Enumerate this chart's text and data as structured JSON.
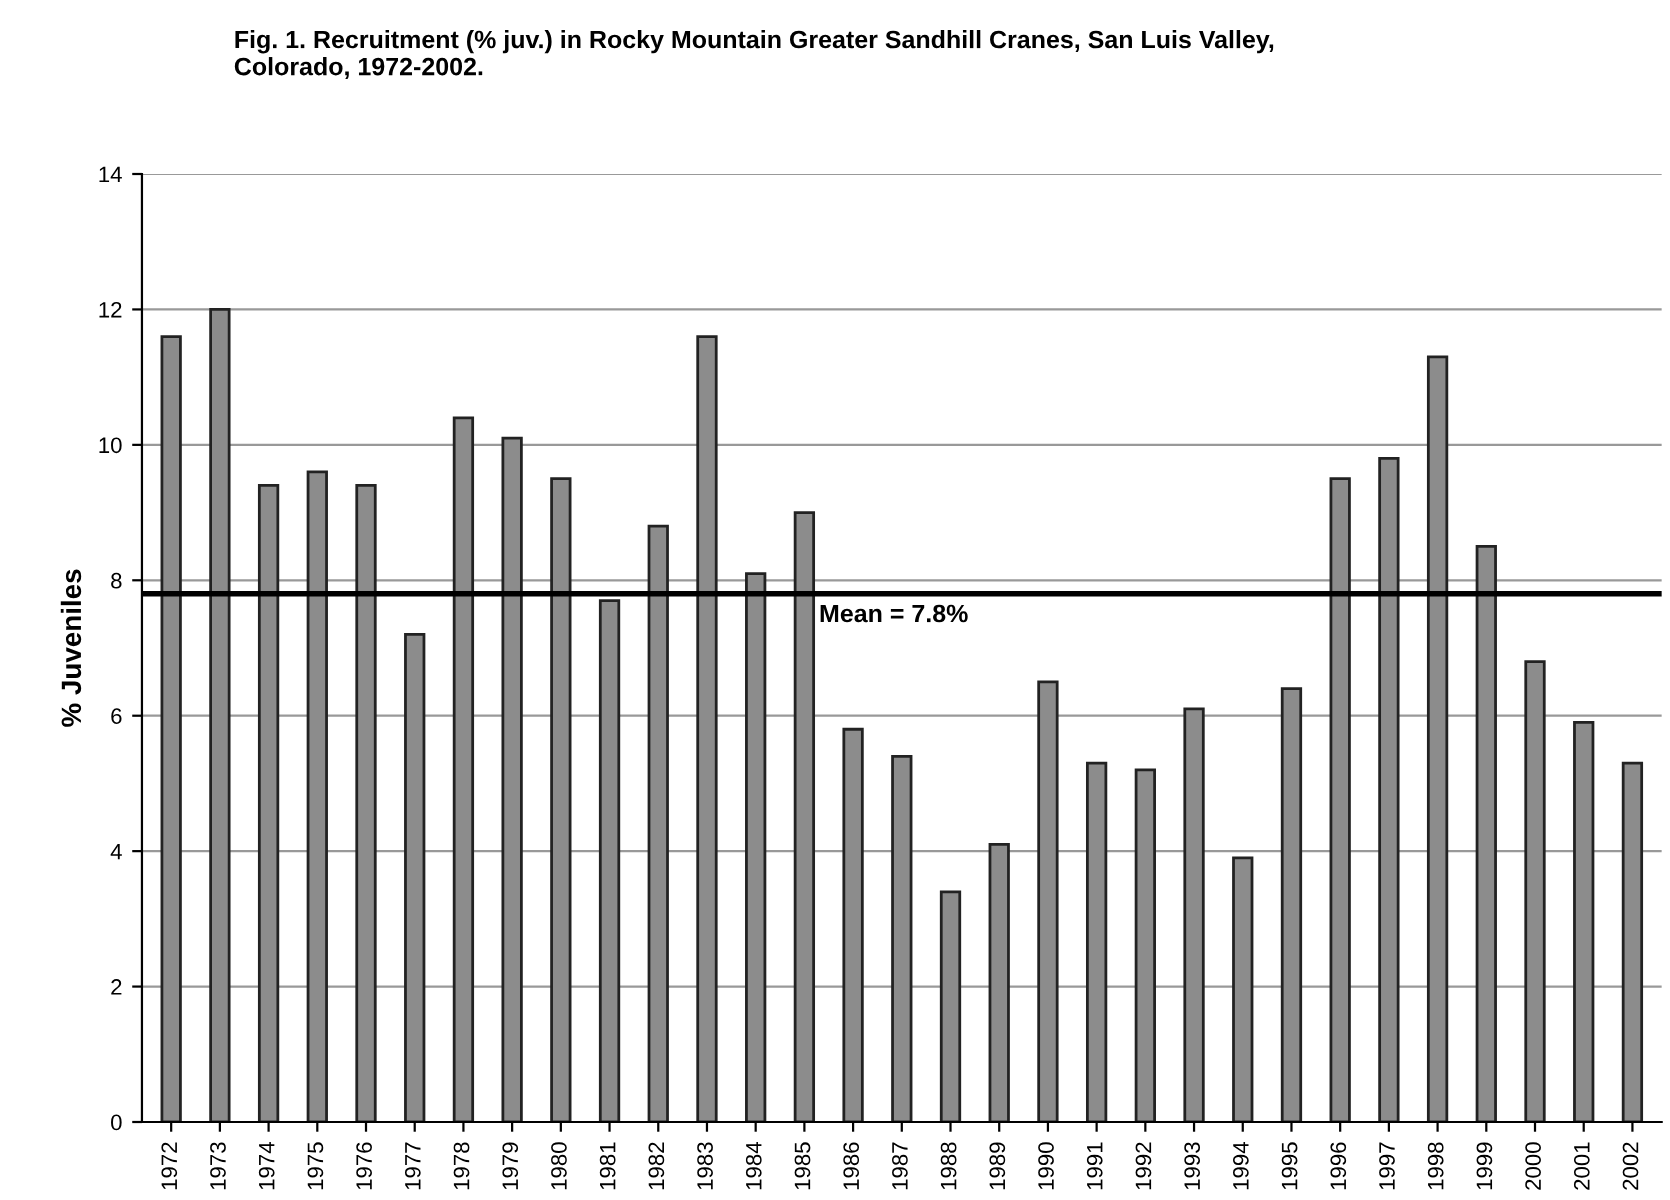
{
  "chart_data": {
    "type": "bar",
    "title": "Fig. 1. Recruitment (% juv.) in Rocky Mountain Greater Sandhill Cranes, San Luis Valley,\nColorado, 1972-2002.",
    "ylabel": "% Juveniles",
    "categories": [
      "1972",
      "1973",
      "1974",
      "1975",
      "1976",
      "1977",
      "1978",
      "1979",
      "1980",
      "1981",
      "1982",
      "1983",
      "1984",
      "1985",
      "1986",
      "1987",
      "1988",
      "1989",
      "1990",
      "1991",
      "1992",
      "1993",
      "1994",
      "1995",
      "1996",
      "1997",
      "1998",
      "1999",
      "2000",
      "2001",
      "2002"
    ],
    "values": [
      11.6,
      12.0,
      9.4,
      9.6,
      9.4,
      7.2,
      10.4,
      10.1,
      9.5,
      7.7,
      8.8,
      11.6,
      8.1,
      9.0,
      5.8,
      5.4,
      3.4,
      4.1,
      6.5,
      5.3,
      5.2,
      6.1,
      3.9,
      6.4,
      9.5,
      9.8,
      11.3,
      8.5,
      6.8,
      5.9,
      5.3
    ],
    "color": "#8c8c8c",
    "ylim": [
      0,
      14
    ],
    "yticks": [
      0,
      2,
      4,
      6,
      8,
      10,
      12,
      14
    ],
    "grid": "y",
    "ref_lines": [
      {
        "axis": "y",
        "value": 7.8,
        "label": "Mean = 7.8%",
        "color": "#000000",
        "line_style": "solid"
      }
    ]
  }
}
